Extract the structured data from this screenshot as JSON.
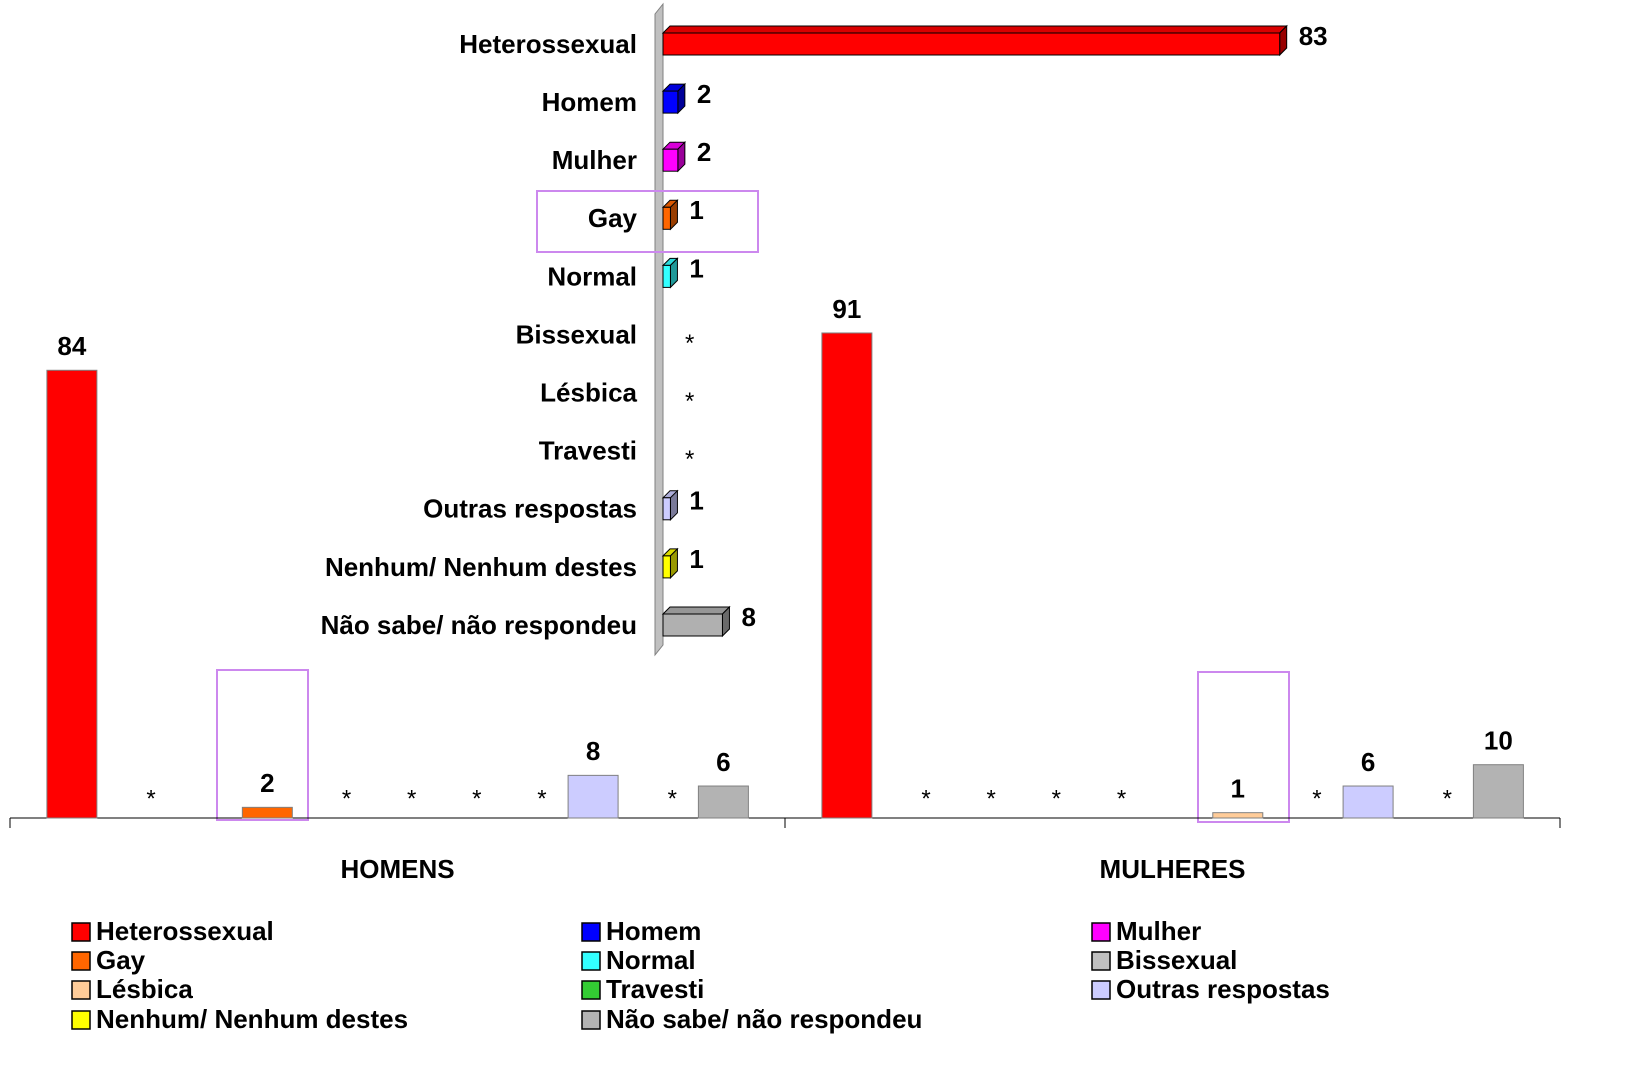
{
  "chart_data": [
    {
      "type": "bar",
      "orientation": "horizontal",
      "categories": [
        "Heterossexual",
        "Homem",
        "Mulher",
        "Gay",
        "Normal",
        "Bissexual",
        "Lésbica",
        "Travesti",
        "Outras respostas",
        "Nenhum/ Nenhum destes",
        "Não sabe/ não respondeu"
      ],
      "values": [
        83,
        2,
        2,
        1,
        1,
        null,
        null,
        null,
        1,
        1,
        8
      ],
      "value_labels": [
        "83",
        "2",
        "2",
        "1",
        "1",
        "*",
        "*",
        "*",
        "1",
        "1",
        "8"
      ],
      "colors": [
        "#ff0000",
        "#0000ff",
        "#ff00ff",
        "#ff6600",
        "#33ffff",
        "#c0c0c0",
        "#ffcc99",
        "#33cc33",
        "#ccccff",
        "#ffff00",
        "#b0b0b0"
      ],
      "xlim": [
        0,
        100
      ]
    },
    {
      "type": "bar",
      "orientation": "vertical",
      "categories": [
        "HOMENS",
        "MULHERES"
      ],
      "ylim": [
        0,
        100
      ],
      "legend": "bottom",
      "series": [
        {
          "name": "Heterossexual",
          "color": "#ff0000",
          "values": [
            84,
            91
          ],
          "value_labels": [
            "84",
            "91"
          ]
        },
        {
          "name": "Homem",
          "color": "#0000ff",
          "values": [
            null,
            null
          ],
          "value_labels": [
            "*",
            "*"
          ]
        },
        {
          "name": "Mulher",
          "color": "#ff00ff",
          "values": [
            null,
            null
          ],
          "value_labels": [
            null,
            "*"
          ]
        },
        {
          "name": "Gay",
          "color": "#ff6600",
          "values": [
            2,
            null
          ],
          "value_labels": [
            "2",
            "*"
          ]
        },
        {
          "name": "Normal",
          "color": "#33ffff",
          "values": [
            null,
            null
          ],
          "value_labels": [
            "*",
            "*"
          ]
        },
        {
          "name": "Bissexual",
          "color": "#c0c0c0",
          "values": [
            null,
            null
          ],
          "value_labels": [
            "*",
            null
          ]
        },
        {
          "name": "Lésbica",
          "color": "#ffcc99",
          "values": [
            null,
            1
          ],
          "value_labels": [
            "*",
            "1"
          ]
        },
        {
          "name": "Travesti",
          "color": "#33cc33",
          "values": [
            null,
            null
          ],
          "value_labels": [
            "*",
            "*"
          ]
        },
        {
          "name": "Outras respostas",
          "color": "#ccccff",
          "values": [
            8,
            6
          ],
          "value_labels": [
            "8",
            "6"
          ]
        },
        {
          "name": "Nenhum/ Nenhum destes",
          "color": "#ffff00",
          "values": [
            null,
            null
          ],
          "value_labels": [
            "*",
            "*"
          ]
        },
        {
          "name": "Não sabe/ não respondeu",
          "color": "#b3b3b3",
          "values": [
            6,
            10
          ],
          "value_labels": [
            "6",
            "10"
          ]
        }
      ]
    }
  ]
}
